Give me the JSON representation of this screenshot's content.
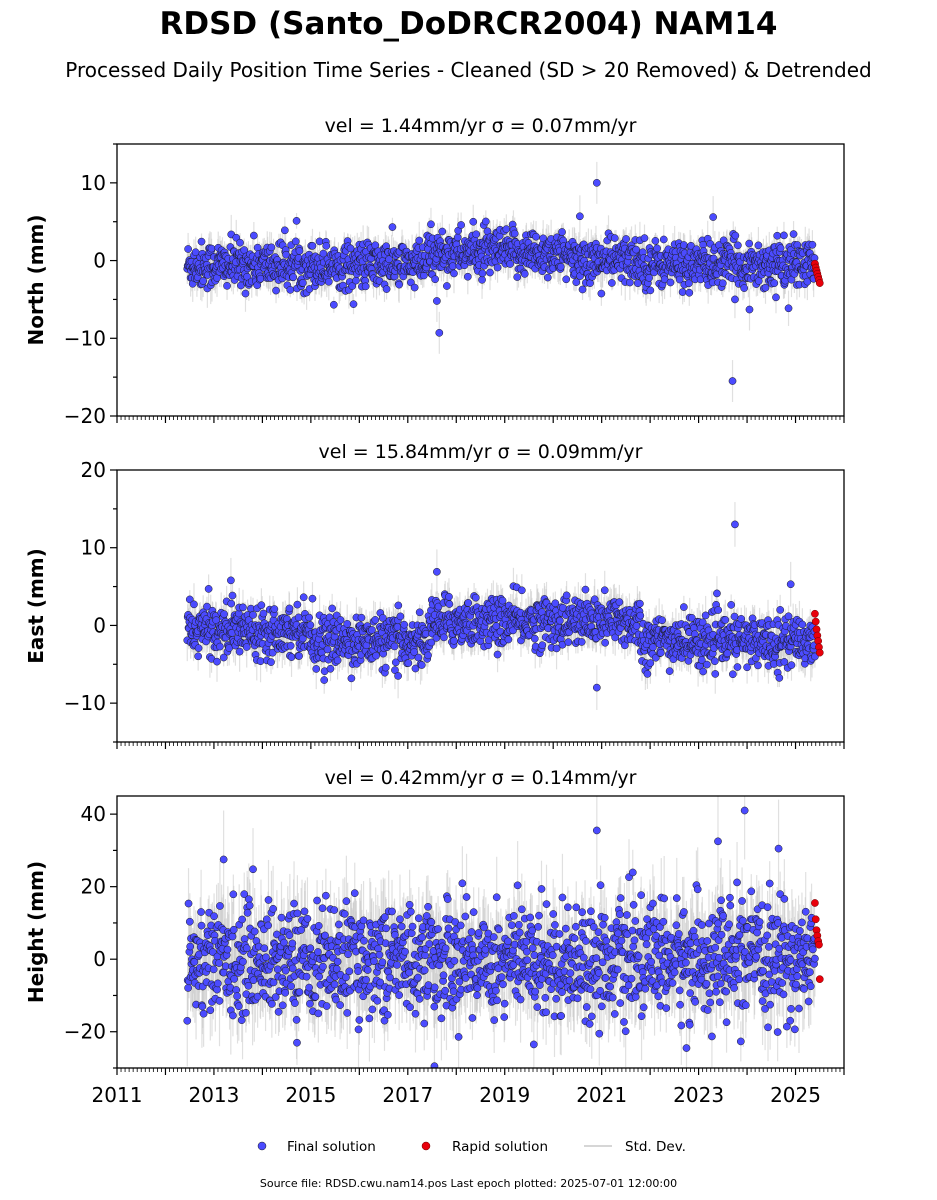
{
  "figure": {
    "title": "RDSD (Santo_DoDRCR2004) NAM14",
    "subtitle": "Processed Daily Position Time Series - Cleaned (SD > 20 Removed) & Detrended",
    "footer": "Source file: RDSD.cwu.nam14.pos  Last epoch plotted: 2025-07-01 12:00:00"
  },
  "colors": {
    "final": "#4b4bff",
    "rapid": "#e8000b",
    "stddev": "#c8c8c8",
    "marker_edge": "#1a1a1a"
  },
  "legend": {
    "final_label": "Final solution",
    "rapid_label": "Rapid solution",
    "std_label": "Std. Dev.",
    "placement": "bottom-center"
  },
  "chart_data": [
    {
      "type": "scatter",
      "title": "vel = 1.44mm/yr   σ = 0.07mm/yr",
      "ylabel": "North (mm)",
      "xlim": [
        2011,
        2026
      ],
      "ylim": [
        -20,
        15
      ],
      "yticks": [
        -20,
        -10,
        0,
        10
      ],
      "ytick_labels": [
        "−20",
        "−10",
        "0",
        "10"
      ],
      "final_period": [
        2012.45,
        2025.4
      ],
      "rapid_period": [
        2025.4,
        2025.5
      ],
      "scatter_sd": 1.5,
      "segments": [
        {
          "x": [
            2012.45,
            2017.4
          ],
          "offset": -0.6
        },
        {
          "x": [
            2017.4,
            2020.2
          ],
          "offset": 1.0
        },
        {
          "x": [
            2020.2,
            2021.9
          ],
          "offset": 0.0
        },
        {
          "x": [
            2021.9,
            2025.4
          ],
          "offset": -0.5
        }
      ],
      "rapid_values": [
        -0.4,
        -0.9,
        -1.3,
        -1.7,
        -2.1,
        -2.5,
        -2.9
      ],
      "outliers": [
        {
          "x": 2017.65,
          "y": -9.3
        },
        {
          "x": 2017.6,
          "y": -5.2
        },
        {
          "x": 2020.9,
          "y": 10.0
        },
        {
          "x": 2020.55,
          "y": 5.7
        },
        {
          "x": 2023.7,
          "y": -15.5
        },
        {
          "x": 2023.3,
          "y": 5.6
        },
        {
          "x": 2024.05,
          "y": -6.3
        }
      ]
    },
    {
      "type": "scatter",
      "title": "vel = 15.84mm/yr   σ = 0.09mm/yr",
      "ylabel": "East (mm)",
      "xlim": [
        2011,
        2026
      ],
      "ylim": [
        -15,
        20
      ],
      "yticks": [
        -10,
        0,
        10,
        20
      ],
      "ytick_labels": [
        "−10",
        "0",
        "10",
        "20"
      ],
      "final_period": [
        2012.45,
        2025.4
      ],
      "rapid_period": [
        2025.4,
        2025.5
      ],
      "scatter_sd": 1.6,
      "segments": [
        {
          "x": [
            2012.45,
            2015.0
          ],
          "offset": -0.5
        },
        {
          "x": [
            2015.0,
            2017.45
          ],
          "offset": -2.0
        },
        {
          "x": [
            2017.45,
            2021.8
          ],
          "offset": 0.5
        },
        {
          "x": [
            2021.8,
            2025.4
          ],
          "offset": -2.0
        }
      ],
      "rapid_values": [
        1.5,
        0.5,
        -0.5,
        -1.3,
        -2.0,
        -2.8,
        -3.5
      ],
      "outliers": [
        {
          "x": 2023.75,
          "y": 13.0
        },
        {
          "x": 2017.6,
          "y": 6.9
        },
        {
          "x": 2020.9,
          "y": -8.0
        },
        {
          "x": 2013.35,
          "y": 5.8
        },
        {
          "x": 2024.9,
          "y": 5.3
        },
        {
          "x": 2016.8,
          "y": -6.5
        }
      ]
    },
    {
      "type": "scatter",
      "title": "vel = 0.42mm/yr   σ = 0.14mm/yr",
      "ylabel": "Height (mm)",
      "xlim": [
        2011,
        2026
      ],
      "ylim": [
        -30,
        45
      ],
      "yticks": [
        -20,
        0,
        20,
        40
      ],
      "ytick_labels": [
        "−20",
        "0",
        "20",
        "40"
      ],
      "xticks": [
        2011,
        2013,
        2015,
        2017,
        2019,
        2021,
        2023,
        2025
      ],
      "xtick_labels": [
        "2011",
        "2013",
        "2015",
        "2017",
        "2019",
        "2021",
        "2023",
        "2025"
      ],
      "final_period": [
        2012.45,
        2025.4
      ],
      "rapid_period": [
        2025.4,
        2025.5
      ],
      "scatter_sd": 7.5,
      "segments": [
        {
          "x": [
            2012.45,
            2025.4
          ],
          "offset": 0.0
        }
      ],
      "rapid_values": [
        15.5,
        11.0,
        8.0,
        6.5,
        5.0,
        4.0,
        -5.5
      ],
      "outliers": [
        {
          "x": 2023.95,
          "y": 41.0
        },
        {
          "x": 2020.9,
          "y": 35.5
        },
        {
          "x": 2023.4,
          "y": 32.5
        },
        {
          "x": 2013.2,
          "y": 27.5
        },
        {
          "x": 2024.65,
          "y": 30.5
        },
        {
          "x": 2022.75,
          "y": -24.5
        },
        {
          "x": 2019.6,
          "y": -23.5
        },
        {
          "x": 2017.55,
          "y": -29.5
        }
      ]
    }
  ]
}
